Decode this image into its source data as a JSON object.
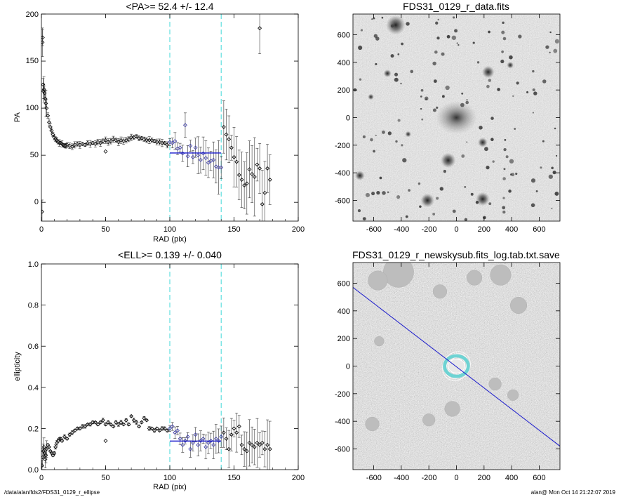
{
  "chart_data": [
    {
      "type": "scatter",
      "title": "<PA>=  52.4 +/-  12.4",
      "xlabel": "RAD (pix)",
      "ylabel": "PA",
      "xlim": [
        0,
        200
      ],
      "ylim": [
        -20,
        200
      ],
      "xticks": [
        "0",
        "50",
        "100",
        "150",
        "200"
      ],
      "yticks": [
        "0",
        "50",
        "100",
        "150",
        "200"
      ],
      "markers": "open diamonds with error bars",
      "fit_range": [
        100,
        140
      ],
      "mean_value": 52.4,
      "inner_points": [
        [
          0.5,
          -10
        ],
        [
          0.8,
          170
        ],
        [
          1,
          175
        ],
        [
          1.3,
          125
        ],
        [
          1.6,
          118
        ],
        [
          2,
          120
        ],
        [
          2.5,
          116
        ],
        [
          3,
          110
        ],
        [
          3.5,
          105
        ],
        [
          4,
          100
        ],
        [
          5,
          92
        ],
        [
          6,
          85
        ],
        [
          7,
          80
        ],
        [
          8,
          76
        ],
        [
          9,
          72
        ],
        [
          10,
          69
        ],
        [
          11,
          67
        ],
        [
          12,
          66
        ],
        [
          13,
          64
        ],
        [
          14,
          63
        ],
        [
          15,
          63
        ],
        [
          16,
          62
        ],
        [
          17,
          61
        ],
        [
          18,
          60
        ],
        [
          19,
          60
        ],
        [
          20,
          61
        ],
        [
          22,
          60
        ],
        [
          24,
          59
        ],
        [
          26,
          61
        ],
        [
          28,
          62
        ],
        [
          30,
          61
        ],
        [
          32,
          62
        ],
        [
          34,
          61
        ],
        [
          36,
          63
        ],
        [
          38,
          62
        ],
        [
          40,
          63
        ],
        [
          42,
          62
        ],
        [
          44,
          64
        ],
        [
          46,
          63
        ],
        [
          48,
          65
        ],
        [
          50,
          66
        ],
        [
          52,
          64
        ],
        [
          54,
          65
        ],
        [
          56,
          67
        ],
        [
          58,
          66
        ],
        [
          60,
          64
        ],
        [
          62,
          66
        ],
        [
          64,
          65
        ],
        [
          66,
          66
        ],
        [
          68,
          67
        ],
        [
          70,
          69
        ],
        [
          72,
          69
        ],
        [
          74,
          70
        ],
        [
          76,
          68
        ],
        [
          78,
          68
        ],
        [
          80,
          67
        ],
        [
          82,
          66
        ],
        [
          84,
          66
        ],
        [
          86,
          66
        ],
        [
          88,
          65
        ],
        [
          90,
          64
        ],
        [
          92,
          64
        ],
        [
          94,
          63
        ],
        [
          96,
          63
        ],
        [
          98,
          61
        ]
      ],
      "outer_points": [
        [
          100,
          64
        ],
        [
          102,
          63
        ],
        [
          104,
          65
        ],
        [
          106,
          57
        ],
        [
          108,
          58
        ],
        [
          110,
          52
        ],
        [
          112,
          82
        ],
        [
          114,
          49
        ],
        [
          116,
          60
        ],
        [
          118,
          48
        ],
        [
          120,
          58
        ],
        [
          122,
          50
        ],
        [
          124,
          45
        ],
        [
          126,
          52
        ],
        [
          128,
          47
        ],
        [
          130,
          42
        ],
        [
          132,
          44
        ],
        [
          134,
          45
        ],
        [
          136,
          38
        ],
        [
          138,
          37
        ],
        [
          140,
          37
        ],
        [
          142,
          80
        ],
        [
          144,
          72
        ],
        [
          146,
          67
        ],
        [
          148,
          58
        ],
        [
          150,
          48
        ],
        [
          152,
          43
        ],
        [
          154,
          29
        ],
        [
          156,
          24
        ],
        [
          158,
          18
        ],
        [
          160,
          20
        ],
        [
          162,
          35
        ],
        [
          164,
          30
        ],
        [
          166,
          27
        ],
        [
          168,
          40
        ],
        [
          170,
          36
        ],
        [
          172,
          -2
        ],
        [
          174,
          10
        ],
        [
          176,
          36
        ],
        [
          178,
          24
        ],
        [
          170,
          185
        ]
      ],
      "outlier": [
        50,
        54
      ]
    },
    {
      "type": "scatter",
      "title": "<ELL>= 0.139 +/-  0.040",
      "xlabel": "RAD (pix)",
      "ylabel": "ellipticity",
      "xlim": [
        0,
        200
      ],
      "ylim": [
        0,
        1
      ],
      "xticks": [
        "0",
        "50",
        "100",
        "150",
        "200"
      ],
      "yticks": [
        "0.0",
        "0.2",
        "0.4",
        "0.6",
        "0.8",
        "1.0"
      ],
      "markers": "open diamonds with error bars",
      "fit_range": [
        100,
        140
      ],
      "mean_value": 0.139,
      "inner_points": [
        [
          0.5,
          0.02
        ],
        [
          1,
          0.06
        ],
        [
          1.5,
          0.09
        ],
        [
          2,
          0.11
        ],
        [
          2.5,
          0.08
        ],
        [
          3,
          0.05
        ],
        [
          3.5,
          0.07
        ],
        [
          4,
          0.1
        ],
        [
          5,
          0.12
        ],
        [
          6,
          0.11
        ],
        [
          7,
          0.09
        ],
        [
          8,
          0.08
        ],
        [
          9,
          0.07
        ],
        [
          10,
          0.08
        ],
        [
          11,
          0.11
        ],
        [
          12,
          0.13
        ],
        [
          13,
          0.14
        ],
        [
          14,
          0.15
        ],
        [
          15,
          0.15
        ],
        [
          16,
          0.14
        ],
        [
          18,
          0.16
        ],
        [
          20,
          0.15
        ],
        [
          22,
          0.17
        ],
        [
          24,
          0.18
        ],
        [
          26,
          0.19
        ],
        [
          28,
          0.2
        ],
        [
          30,
          0.2
        ],
        [
          32,
          0.21
        ],
        [
          34,
          0.21
        ],
        [
          36,
          0.22
        ],
        [
          38,
          0.22
        ],
        [
          40,
          0.23
        ],
        [
          42,
          0.23
        ],
        [
          44,
          0.22
        ],
        [
          46,
          0.23
        ],
        [
          48,
          0.24
        ],
        [
          50,
          0.22
        ],
        [
          52,
          0.23
        ],
        [
          54,
          0.22
        ],
        [
          56,
          0.21
        ],
        [
          58,
          0.23
        ],
        [
          60,
          0.22
        ],
        [
          62,
          0.23
        ],
        [
          64,
          0.22
        ],
        [
          66,
          0.24
        ],
        [
          68,
          0.22
        ],
        [
          70,
          0.26
        ],
        [
          72,
          0.24
        ],
        [
          74,
          0.23
        ],
        [
          76,
          0.21
        ],
        [
          78,
          0.23
        ],
        [
          80,
          0.25
        ],
        [
          82,
          0.24
        ],
        [
          84,
          0.2
        ],
        [
          86,
          0.2
        ],
        [
          88,
          0.19
        ],
        [
          90,
          0.2
        ],
        [
          92,
          0.19
        ],
        [
          94,
          0.2
        ],
        [
          96,
          0.2
        ],
        [
          98,
          0.19
        ]
      ],
      "outer_points": [
        [
          100,
          0.2
        ],
        [
          102,
          0.21
        ],
        [
          104,
          0.18
        ],
        [
          106,
          0.19
        ],
        [
          108,
          0.15
        ],
        [
          110,
          0.12
        ],
        [
          112,
          0.14
        ],
        [
          114,
          0.16
        ],
        [
          116,
          0.1
        ],
        [
          118,
          0.13
        ],
        [
          120,
          0.17
        ],
        [
          122,
          0.12
        ],
        [
          124,
          0.14
        ],
        [
          126,
          0.15
        ],
        [
          128,
          0.11
        ],
        [
          130,
          0.13
        ],
        [
          132,
          0.14
        ],
        [
          134,
          0.12
        ],
        [
          136,
          0.15
        ],
        [
          138,
          0.14
        ],
        [
          140,
          0.16
        ],
        [
          142,
          0.18
        ],
        [
          144,
          0.15
        ],
        [
          146,
          0.1
        ],
        [
          148,
          0.17
        ],
        [
          150,
          0.2
        ],
        [
          152,
          0.18
        ],
        [
          154,
          0.21
        ],
        [
          156,
          0.12
        ],
        [
          158,
          0.1
        ],
        [
          160,
          0.09
        ],
        [
          162,
          0.13
        ],
        [
          164,
          0.12
        ],
        [
          166,
          0.11
        ],
        [
          168,
          0.13
        ],
        [
          170,
          0.12
        ],
        [
          172,
          0.13
        ],
        [
          174,
          0.1
        ],
        [
          176,
          0.12
        ],
        [
          178,
          0.1
        ]
      ],
      "outlier": [
        50,
        0.14
      ]
    }
  ],
  "images": [
    {
      "title": "FDS31_0129_r_data.fits",
      "xticks": [
        "-600",
        "-400",
        "-200",
        "0",
        "200",
        "400",
        "600"
      ],
      "yticks": [
        "600",
        "400",
        "200",
        "0",
        "-200",
        "-400",
        "-600"
      ],
      "range": [
        -750,
        750
      ]
    },
    {
      "title": "FDS31_0129_r_newskysub.fits_log.tab.txt.save",
      "xticks": [
        "-600",
        "-400",
        "-200",
        "0",
        "200",
        "400",
        "600"
      ],
      "yticks": [
        "600",
        "400",
        "200",
        "0",
        "-200",
        "-400",
        "-600"
      ],
      "range": [
        -750,
        750
      ],
      "line_angle_deg": 52.4
    }
  ],
  "footer": {
    "left": "/data/alan/fds2/FDS31_0129_r_ellipse",
    "right": "alan@  Mon Oct 14 21:22:07 2019"
  },
  "colors": {
    "fit_line": "#1a1acc",
    "fit_points": "#3a3aa8",
    "guide_lines": "#40d8d8",
    "ring": "#60d0d0"
  }
}
